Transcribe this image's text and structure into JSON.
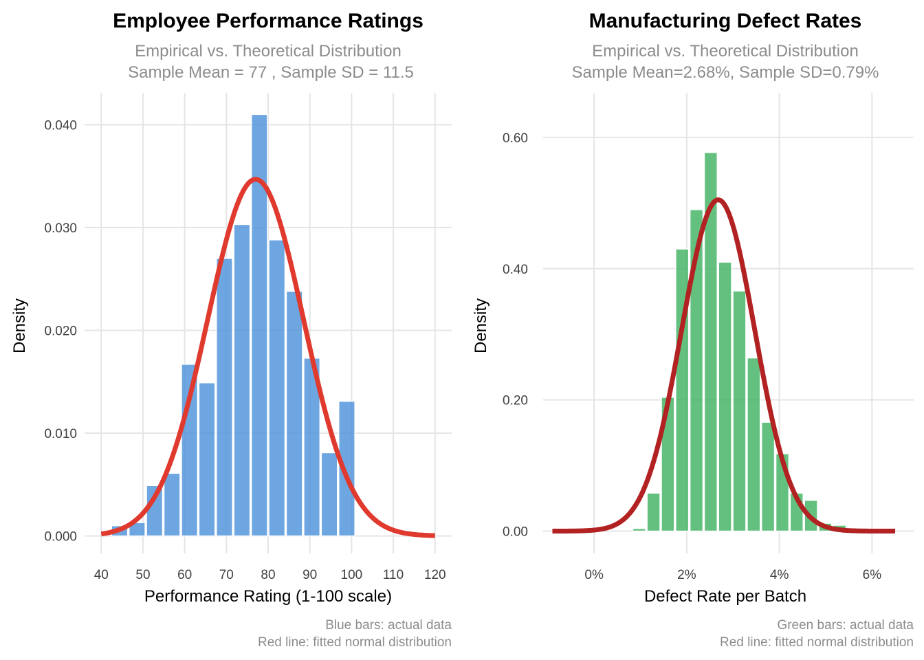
{
  "chart_data": [
    {
      "type": "bar",
      "title": "Employee Performance Ratings",
      "subtitle": [
        "Empirical vs. Theoretical Distribution",
        "Sample Mean = 77 , Sample SD = 11.5"
      ],
      "xlabel": "Performance Rating (1-100 scale)",
      "ylabel": "Density",
      "xlim": [
        36,
        124
      ],
      "ylim": [
        -0.0017,
        0.0431
      ],
      "xticks": [
        40,
        50,
        60,
        70,
        80,
        90,
        100,
        110,
        120
      ],
      "xtick_labels": [
        "40",
        "50",
        "60",
        "70",
        "80",
        "90",
        "100",
        "110",
        "120"
      ],
      "yticks": [
        0,
        0.01,
        0.02,
        0.03,
        0.04
      ],
      "ytick_labels": [
        "0.000",
        "0.010",
        "0.020",
        "0.030",
        "0.040"
      ],
      "grid": true,
      "bar_color": "#4a90d9",
      "line_color": "#e03a2f",
      "bins": {
        "start": 42.3,
        "width": 4.19,
        "values": [
          0.001,
          0.0013,
          0.0049,
          0.0061,
          0.0167,
          0.0149,
          0.027,
          0.0303,
          0.041,
          0.0288,
          0.0238,
          0.0173,
          0.0081,
          0.0131
        ]
      },
      "normal_fit": {
        "mean": 77,
        "sd": 11.5,
        "x_range": [
          40,
          120
        ]
      },
      "caption": [
        "Blue bars: actual data",
        "Red line: fitted normal distribution"
      ]
    },
    {
      "type": "bar",
      "title": "Manufacturing Defect Rates",
      "subtitle": [
        "Empirical vs. Theoretical Distribution",
        "Sample Mean=2.68%, Sample SD=0.79%"
      ],
      "xlabel": "Defect Rate per Batch",
      "ylabel": "Density",
      "xlim": [
        -1.1,
        6.9
      ],
      "ylim": [
        -0.034,
        0.668
      ],
      "xticks": [
        0,
        2,
        4,
        6
      ],
      "xtick_labels": [
        "0%",
        "2%",
        "4%",
        "6%"
      ],
      "yticks": [
        0,
        0.2,
        0.4,
        0.6
      ],
      "ytick_labels": [
        "0.00",
        "0.20",
        "0.40",
        "0.60"
      ],
      "grid": true,
      "bar_color": "#3cb05f",
      "line_color": "#b22222",
      "bins": {
        "start": 0.82,
        "width": 0.309,
        "values": [
          0.004,
          0.058,
          0.204,
          0.43,
          0.49,
          0.577,
          0.41,
          0.366,
          0.264,
          0.166,
          0.118,
          0.058,
          0.047,
          0.012,
          0.009
        ]
      },
      "normal_fit": {
        "mean": 2.68,
        "sd": 0.79,
        "x_range": [
          -0.9,
          6.5
        ]
      },
      "caption": [
        "Green bars: actual data",
        "Red line: fitted normal distribution"
      ]
    }
  ]
}
